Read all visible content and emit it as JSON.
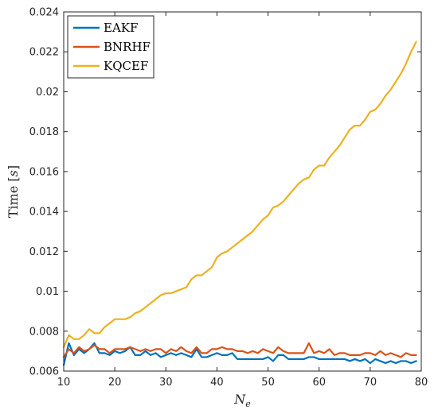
{
  "chart_data": {
    "type": "line",
    "ylabel": "Time [s]",
    "xlabel": "N_e",
    "xlim": [
      10,
      80
    ],
    "ylim": [
      0.006,
      0.024
    ],
    "xticks": [
      10,
      20,
      30,
      40,
      50,
      60,
      70,
      80
    ],
    "xtick_labels": [
      "10",
      "20",
      "30",
      "40",
      "50",
      "60",
      "70",
      "80"
    ],
    "yticks": [
      0.006,
      0.008,
      0.01,
      0.012,
      0.014,
      0.016,
      0.018,
      0.02,
      0.022,
      0.024
    ],
    "ytick_labels": [
      "0.006",
      "0.008",
      "0.01",
      "0.012",
      "0.014",
      "0.016",
      "0.018",
      "0.02",
      "0.022",
      "0.024"
    ],
    "grid": false,
    "legend_position": "top-left",
    "x": [
      10,
      11,
      12,
      13,
      14,
      15,
      16,
      17,
      18,
      19,
      20,
      21,
      22,
      23,
      24,
      25,
      26,
      27,
      28,
      29,
      30,
      31,
      32,
      33,
      34,
      35,
      36,
      37,
      38,
      39,
      40,
      41,
      42,
      43,
      44,
      45,
      46,
      47,
      48,
      49,
      50,
      51,
      52,
      53,
      54,
      55,
      56,
      57,
      58,
      59,
      60,
      61,
      62,
      63,
      64,
      65,
      66,
      67,
      68,
      69,
      70,
      71,
      72,
      73,
      74,
      75,
      76,
      77,
      78,
      79
    ],
    "series": [
      {
        "name": "EAKF",
        "color": "#0072BD",
        "values": [
          0.0063,
          0.0074,
          0.0068,
          0.0071,
          0.0069,
          0.0071,
          0.0074,
          0.0069,
          0.0069,
          0.0068,
          0.007,
          0.0069,
          0.007,
          0.0072,
          0.0068,
          0.0068,
          0.007,
          0.0068,
          0.0069,
          0.0067,
          0.0068,
          0.0069,
          0.0068,
          0.0069,
          0.0068,
          0.0067,
          0.0071,
          0.0067,
          0.0067,
          0.0068,
          0.0069,
          0.0068,
          0.0068,
          0.0069,
          0.0066,
          0.0066,
          0.0066,
          0.0066,
          0.0066,
          0.0066,
          0.0067,
          0.0065,
          0.0068,
          0.0068,
          0.0066,
          0.0066,
          0.0066,
          0.0066,
          0.0067,
          0.0067,
          0.0066,
          0.0066,
          0.0066,
          0.0066,
          0.0066,
          0.0066,
          0.0065,
          0.0066,
          0.0065,
          0.0066,
          0.0064,
          0.0066,
          0.0065,
          0.0064,
          0.0065,
          0.0064,
          0.0065,
          0.0065,
          0.0064,
          0.0065
        ]
      },
      {
        "name": "BNRHF",
        "color": "#D95319",
        "values": [
          0.0067,
          0.0071,
          0.0069,
          0.0072,
          0.007,
          0.0071,
          0.0073,
          0.0071,
          0.0071,
          0.0069,
          0.0071,
          0.0071,
          0.0071,
          0.0072,
          0.0071,
          0.007,
          0.0071,
          0.007,
          0.0071,
          0.0071,
          0.0069,
          0.0071,
          0.007,
          0.0072,
          0.007,
          0.0069,
          0.0072,
          0.0069,
          0.0069,
          0.0071,
          0.0071,
          0.0072,
          0.0071,
          0.0071,
          0.007,
          0.007,
          0.0069,
          0.007,
          0.0069,
          0.0071,
          0.007,
          0.0069,
          0.0072,
          0.007,
          0.0069,
          0.0069,
          0.0069,
          0.0069,
          0.0074,
          0.0069,
          0.007,
          0.0069,
          0.0071,
          0.0068,
          0.0069,
          0.0069,
          0.0068,
          0.0068,
          0.0068,
          0.0069,
          0.0069,
          0.0068,
          0.007,
          0.0068,
          0.0069,
          0.0068,
          0.0067,
          0.0069,
          0.0068,
          0.0068
        ]
      },
      {
        "name": "KQCEF",
        "color": "#EDB120",
        "values": [
          0.0072,
          0.0078,
          0.0076,
          0.0076,
          0.0078,
          0.0081,
          0.0079,
          0.0079,
          0.0082,
          0.0084,
          0.0086,
          0.0086,
          0.0086,
          0.0087,
          0.0089,
          0.009,
          0.0092,
          0.0094,
          0.0096,
          0.0098,
          0.0099,
          0.0099,
          0.01,
          0.0101,
          0.0102,
          0.0106,
          0.0108,
          0.0108,
          0.011,
          0.0112,
          0.0117,
          0.0119,
          0.012,
          0.0122,
          0.0124,
          0.0126,
          0.0128,
          0.013,
          0.0133,
          0.0136,
          0.0138,
          0.0142,
          0.0143,
          0.0145,
          0.0148,
          0.0151,
          0.0154,
          0.0156,
          0.0157,
          0.0161,
          0.0163,
          0.0163,
          0.0167,
          0.017,
          0.0173,
          0.0177,
          0.0181,
          0.0183,
          0.0183,
          0.0186,
          0.019,
          0.0191,
          0.0194,
          0.0198,
          0.0201,
          0.0205,
          0.0209,
          0.0214,
          0.022,
          0.0225
        ]
      }
    ]
  }
}
